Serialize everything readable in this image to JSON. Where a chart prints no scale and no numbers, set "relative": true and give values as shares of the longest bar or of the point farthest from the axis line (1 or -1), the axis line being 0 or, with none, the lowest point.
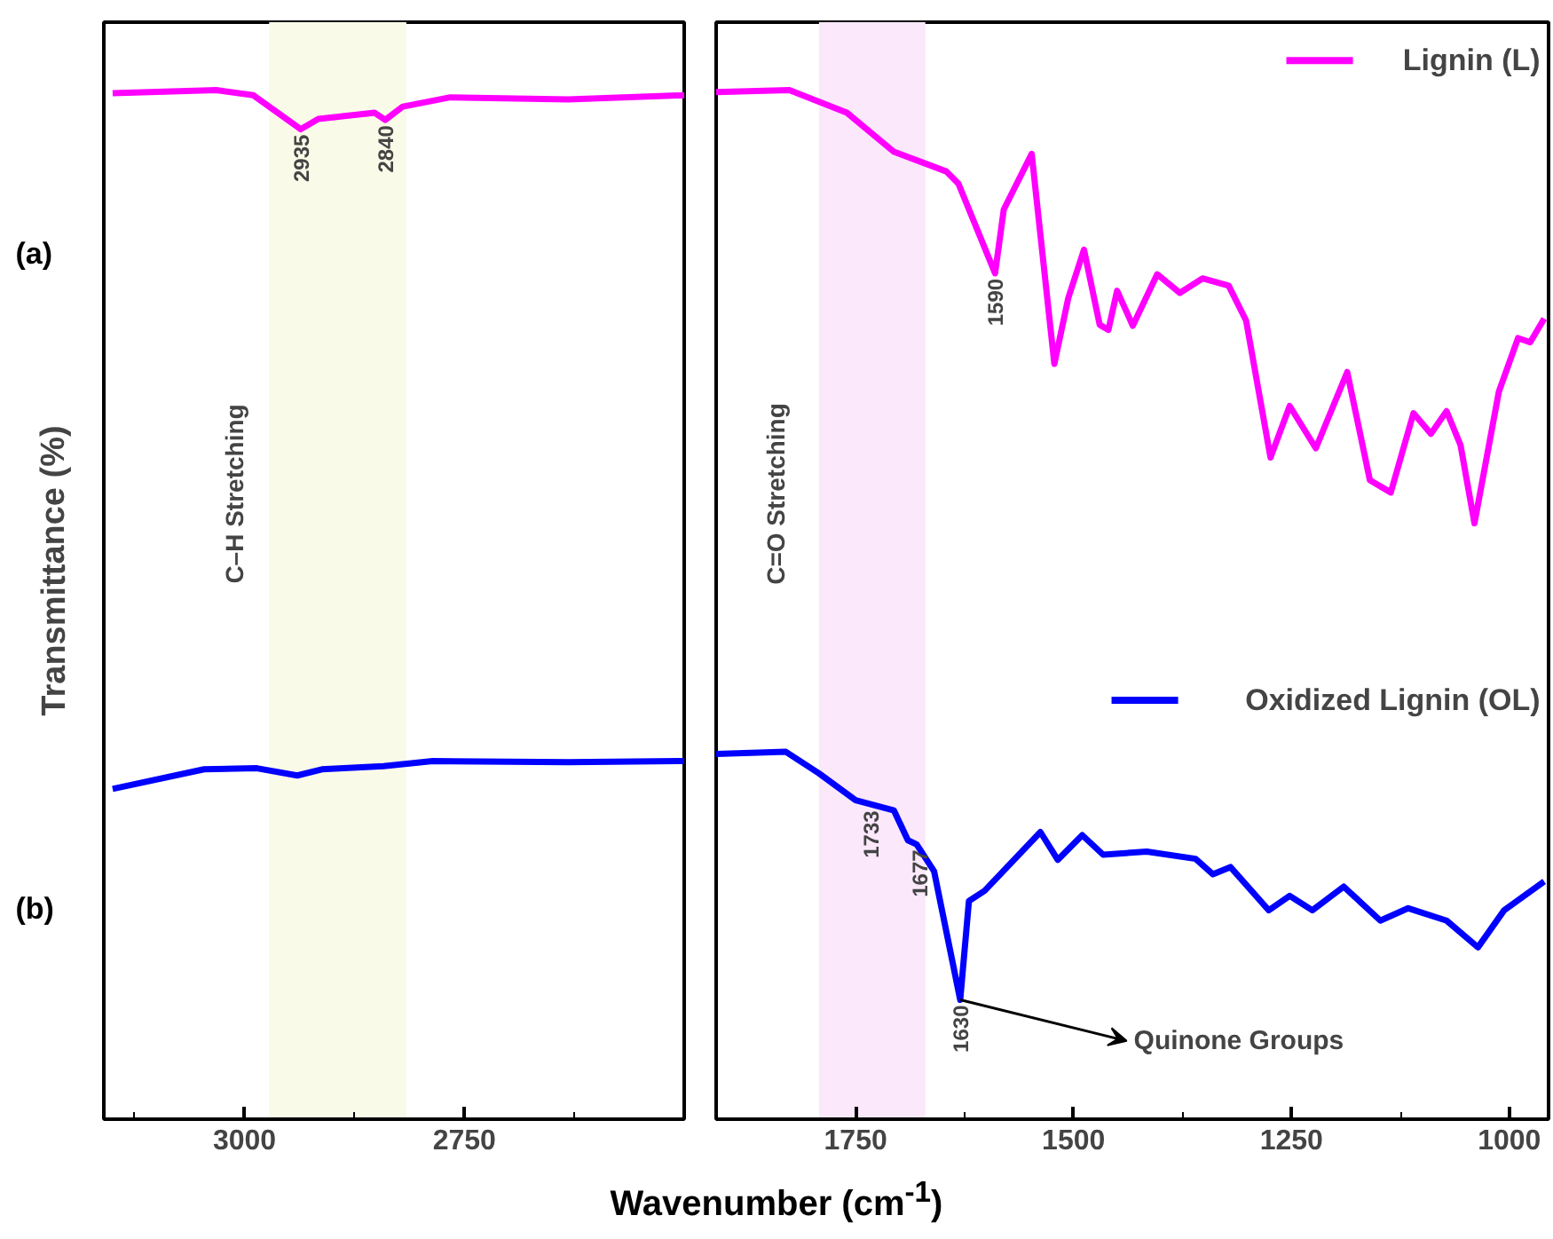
{
  "chart_data": [
    {
      "type": "line",
      "relative": true,
      "ylabel": "Transmittance (%)",
      "xlim": [
        3160,
        2500
      ],
      "xticks": [
        {
          "value": 3125,
          "label": null
        },
        3000,
        {
          "value": 2875,
          "label": null
        },
        2750,
        {
          "value": 2625,
          "label": null
        }
      ],
      "x": [
        3150,
        3032,
        2990,
        2936,
        2916,
        2852,
        2840,
        2820,
        2766,
        2632,
        2500
      ],
      "series": [
        {
          "color": "#ff00ff",
          "values": [
            0.997,
            1.0,
            0.995,
            0.962,
            0.972,
            0.978,
            0.971,
            0.984,
            0.993,
            0.991,
            0.995
          ]
        },
        {
          "color": "#0000ff",
          "x": [
            3150,
            3046,
            2986,
            2940,
            2912,
            2842,
            2786,
            2632,
            2500
          ],
          "values": [
            0.321,
            0.34,
            0.341,
            0.334,
            0.34,
            0.343,
            0.348,
            0.347,
            0.348
          ]
        }
      ],
      "bands": [
        {
          "axis": "x",
          "from": 2972,
          "to": 2816,
          "label": "C–H Stretching",
          "color": "#fafae8"
        }
      ],
      "annotations": [
        "(a)",
        "(b)",
        {
          "text": "2935",
          "x": 2936,
          "y": 0.962
        },
        {
          "text": "2840",
          "x": 2840,
          "y": 0.971
        }
      ],
      "tick_labels": "x",
      "grid": false,
      "legend": false
    },
    {
      "type": "line",
      "relative": true,
      "xlabel": "Wavenumber (cm$^{-1}$)",
      "xlim": [
        1910,
        955
      ],
      "xticks": [
        1750,
        {
          "value": 1625,
          "label": null
        },
        1500,
        {
          "value": 1375,
          "label": null
        },
        1250,
        {
          "value": 1125,
          "label": null
        },
        1000
      ],
      "x": [
        1910,
        1826,
        1760,
        1706,
        1646,
        1632,
        1590,
        1580,
        1548,
        1522,
        1506,
        1488,
        1470,
        1460,
        1450,
        1432,
        1404,
        1378,
        1352,
        1322,
        1302,
        1274,
        1252,
        1222,
        1186,
        1160,
        1136,
        1110,
        1090,
        1072,
        1056,
        1040,
        1012,
        990,
        976,
        960
      ],
      "series": [
        {
          "name": "Lignin (L)",
          "color": "#ff00ff",
          "values": [
            0.998,
            1.0,
            0.978,
            0.94,
            0.921,
            0.909,
            0.822,
            0.884,
            0.938,
            0.734,
            0.798,
            0.845,
            0.772,
            0.767,
            0.805,
            0.771,
            0.821,
            0.803,
            0.817,
            0.81,
            0.776,
            0.643,
            0.693,
            0.652,
            0.726,
            0.621,
            0.609,
            0.686,
            0.666,
            0.688,
            0.655,
            0.579,
            0.707,
            0.759,
            0.755,
            0.778
          ]
        },
        {
          "name": "Oxidized Lignin (OL)",
          "color": "#0000ff",
          "x": [
            1910,
            1830,
            1792,
            1750,
            1706,
            1690,
            1680,
            1660,
            1630,
            1620,
            1602,
            1538,
            1518,
            1490,
            1466,
            1416,
            1360,
            1340,
            1320,
            1276,
            1252,
            1226,
            1190,
            1148,
            1116,
            1072,
            1036,
            1006,
            960
          ],
          "values": [
            0.355,
            0.357,
            0.336,
            0.31,
            0.3,
            0.271,
            0.267,
            0.241,
            0.116,
            0.212,
            0.222,
            0.279,
            0.252,
            0.276,
            0.257,
            0.26,
            0.253,
            0.238,
            0.245,
            0.203,
            0.217,
            0.203,
            0.226,
            0.193,
            0.205,
            0.193,
            0.167,
            0.203,
            0.231
          ]
        }
      ],
      "bands": [
        {
          "axis": "x",
          "from": 1792,
          "to": 1670,
          "label": "C=O Stretching",
          "color": "#fbe8fb"
        }
      ],
      "annotations": [
        {
          "text": "1590",
          "x": 1590,
          "y": 0.822
        },
        {
          "text": "1733",
          "x": 1733,
          "y": 0.305
        },
        {
          "text": "1677",
          "x": 1677,
          "y": 0.267
        },
        {
          "text": "1630",
          "x": 1630,
          "y": 0.116
        },
        {
          "text": "Quinone Groups",
          "x": 1630,
          "y": 0.116
        }
      ],
      "tick_labels": "x",
      "grid": false,
      "legend": "right"
    }
  ]
}
